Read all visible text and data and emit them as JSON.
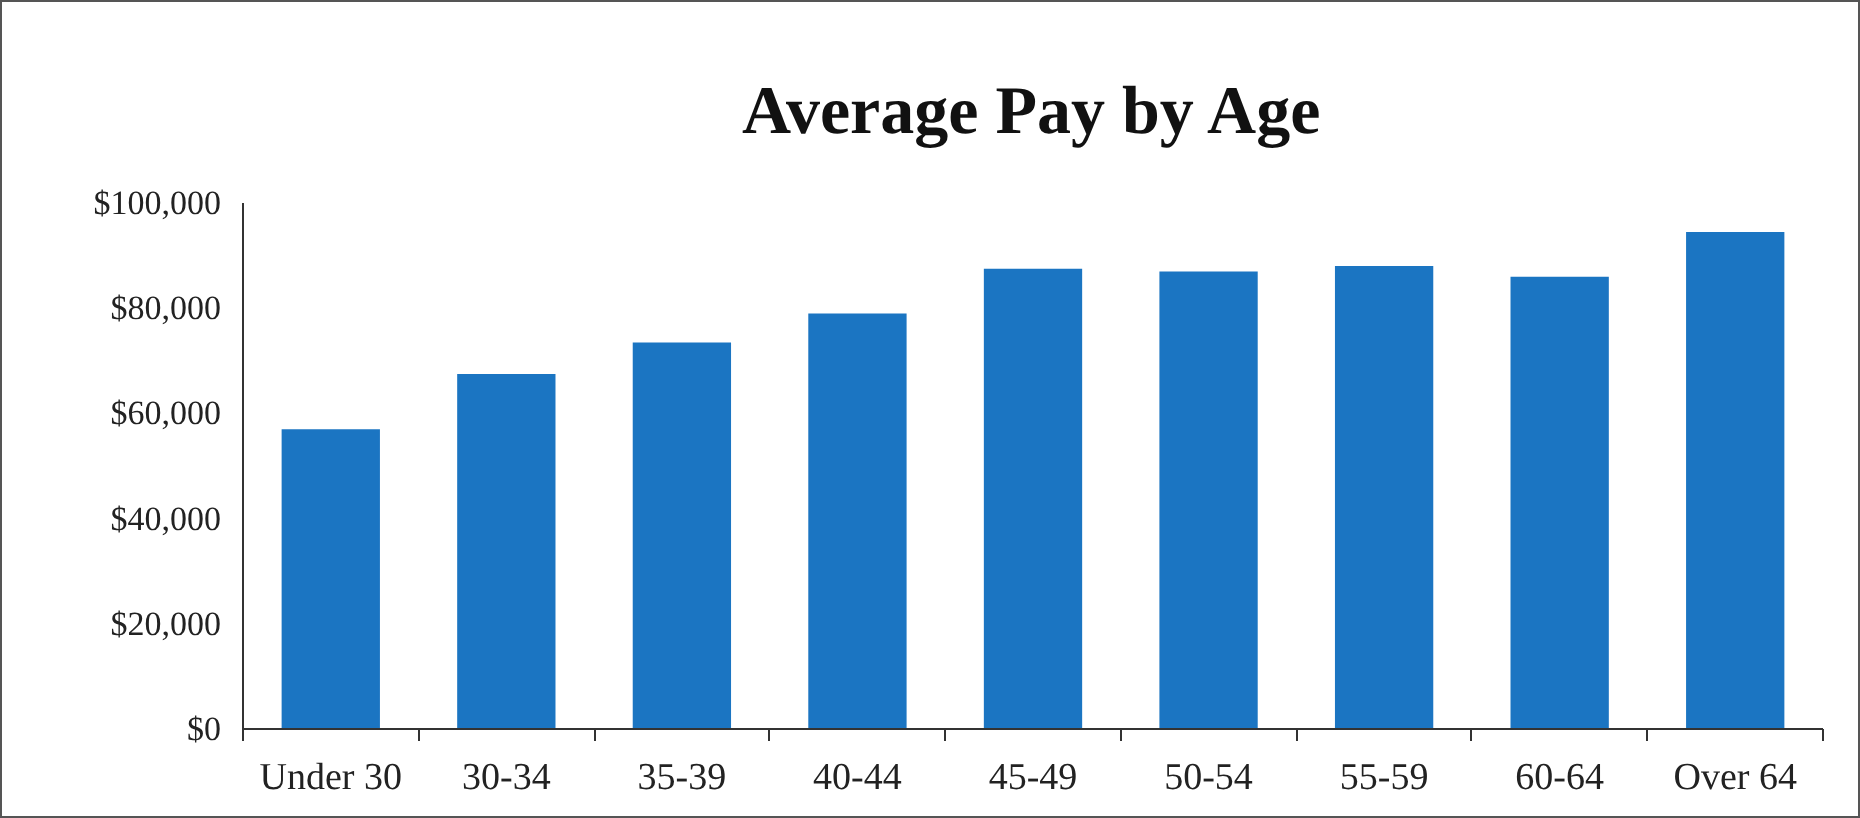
{
  "chart_data": {
    "type": "bar",
    "title": "Average Pay by Age",
    "categories": [
      "Under 30",
      "30-34",
      "35-39",
      "40-44",
      "45-49",
      "50-54",
      "55-59",
      "60-64",
      "Over 64"
    ],
    "values": [
      57000,
      67500,
      73500,
      79000,
      87500,
      87000,
      88000,
      86000,
      94500
    ],
    "color": "#1b75c2",
    "ylim": [
      0,
      100000
    ],
    "yticks": [
      {
        "value": 0,
        "label": "$0"
      },
      {
        "value": 20000,
        "label": "$20,000"
      },
      {
        "value": 40000,
        "label": "$40,000"
      },
      {
        "value": 60000,
        "label": "$60,000"
      },
      {
        "value": 80000,
        "label": "$80,000"
      },
      {
        "value": 100000,
        "label": "$100,000"
      }
    ]
  }
}
